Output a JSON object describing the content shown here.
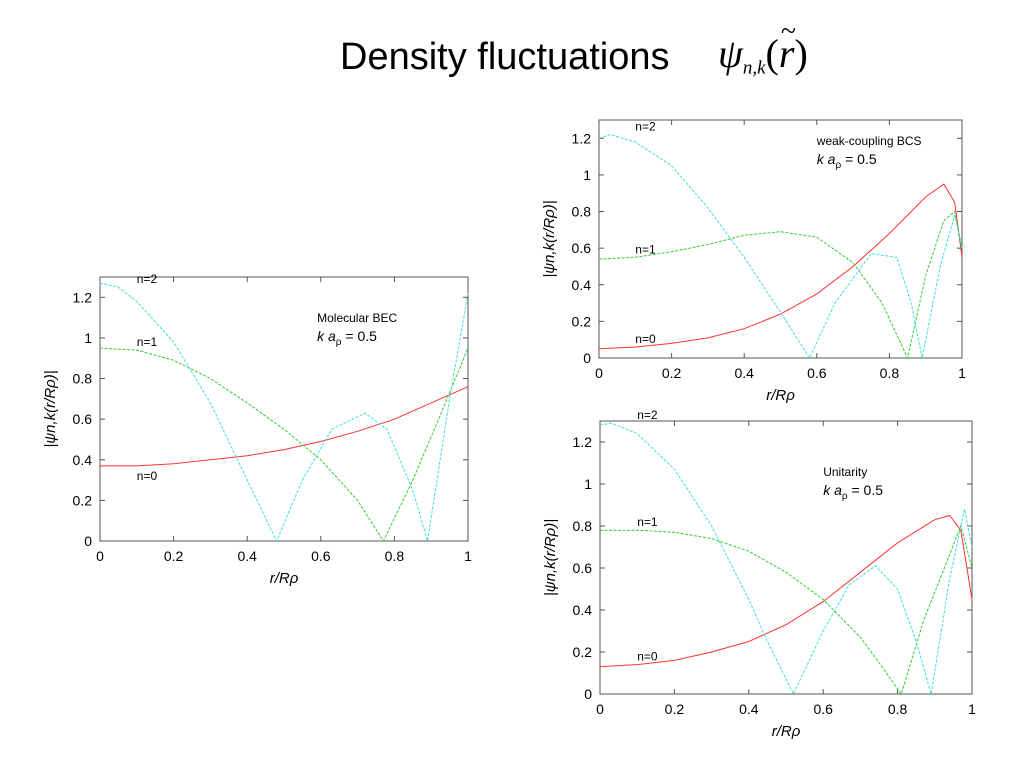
{
  "title": "Density fluctuations",
  "formula": {
    "symbol": "ψ",
    "subscript": "n,k",
    "argument": "r",
    "accent": "~"
  },
  "chart_data": [
    {
      "type": "line",
      "annotation": "Molecular BEC",
      "parameter": {
        "prefix": "k a",
        "sub": "ρ",
        "suffix": " = 0.5"
      },
      "xlabel": "r/Rρ",
      "ylabel": "|ψn,k(r/Rρ)|",
      "xlim": [
        0,
        1
      ],
      "ylim": [
        0,
        1.3
      ],
      "xticks": [
        "0",
        "0.2",
        "0.4",
        "0.6",
        "0.8",
        "1"
      ],
      "yticks": [
        "0",
        "0.2",
        "0.4",
        "0.6",
        "0.8",
        "1",
        "1.2"
      ],
      "grid": false,
      "series": [
        {
          "name": "n=0",
          "color": "#ff3333",
          "x": [
            0,
            0.1,
            0.2,
            0.3,
            0.4,
            0.5,
            0.6,
            0.7,
            0.8,
            0.9,
            1.0
          ],
          "y": [
            0.37,
            0.37,
            0.38,
            0.4,
            0.42,
            0.45,
            0.49,
            0.54,
            0.6,
            0.68,
            0.76
          ]
        },
        {
          "name": "n=1",
          "color": "#33cc33",
          "x": [
            0,
            0.1,
            0.2,
            0.3,
            0.4,
            0.5,
            0.6,
            0.7,
            0.77,
            0.85,
            0.92,
            1.0
          ],
          "y": [
            0.95,
            0.94,
            0.89,
            0.8,
            0.68,
            0.55,
            0.4,
            0.2,
            0.0,
            0.3,
            0.6,
            0.95
          ]
        },
        {
          "name": "n=2",
          "color": "#44dddd",
          "x": [
            0,
            0.05,
            0.1,
            0.2,
            0.3,
            0.4,
            0.48,
            0.55,
            0.63,
            0.72,
            0.78,
            0.85,
            0.89,
            0.95,
            1.0
          ],
          "y": [
            1.27,
            1.25,
            1.18,
            0.98,
            0.68,
            0.3,
            0.0,
            0.3,
            0.55,
            0.63,
            0.55,
            0.25,
            0.0,
            0.7,
            1.22
          ]
        }
      ]
    },
    {
      "type": "line",
      "annotation": "weak-coupling BCS",
      "parameter": {
        "prefix": "k a",
        "sub": "ρ",
        "suffix": " = 0.5"
      },
      "xlabel": "r/Rρ",
      "ylabel": "|ψn,k(r/Rρ)|",
      "xlim": [
        0,
        1
      ],
      "ylim": [
        0,
        1.3
      ],
      "xticks": [
        "0",
        "0.2",
        "0.4",
        "0.6",
        "0.8",
        "1"
      ],
      "yticks": [
        "0",
        "0.2",
        "0.4",
        "0.6",
        "0.8",
        "1",
        "1.2"
      ],
      "grid": false,
      "series": [
        {
          "name": "n=0",
          "color": "#ff3333",
          "x": [
            0,
            0.1,
            0.2,
            0.3,
            0.4,
            0.5,
            0.6,
            0.7,
            0.8,
            0.9,
            0.95,
            0.98,
            1.0
          ],
          "y": [
            0.05,
            0.06,
            0.08,
            0.11,
            0.16,
            0.24,
            0.35,
            0.5,
            0.68,
            0.88,
            0.95,
            0.85,
            0.55
          ]
        },
        {
          "name": "n=1",
          "color": "#33cc33",
          "x": [
            0,
            0.1,
            0.2,
            0.3,
            0.4,
            0.5,
            0.6,
            0.7,
            0.78,
            0.85,
            0.9,
            0.95,
            0.98,
            1.0
          ],
          "y": [
            0.54,
            0.55,
            0.58,
            0.62,
            0.67,
            0.69,
            0.66,
            0.52,
            0.3,
            0.0,
            0.45,
            0.75,
            0.8,
            0.6
          ]
        },
        {
          "name": "n=2",
          "color": "#44dddd",
          "x": [
            0,
            0.03,
            0.1,
            0.2,
            0.3,
            0.4,
            0.5,
            0.58,
            0.65,
            0.75,
            0.82,
            0.86,
            0.89,
            0.94,
            0.98,
            1.0
          ],
          "y": [
            1.2,
            1.22,
            1.18,
            1.05,
            0.82,
            0.55,
            0.25,
            0.0,
            0.3,
            0.57,
            0.55,
            0.3,
            0.0,
            0.5,
            0.78,
            0.6
          ]
        }
      ]
    },
    {
      "type": "line",
      "annotation": "Unitarity",
      "parameter": {
        "prefix": "k a",
        "sub": "ρ",
        "suffix": " = 0.5"
      },
      "xlabel": "r/Rρ",
      "ylabel": "|ψn,k(r/Rρ)|",
      "xlim": [
        0,
        1
      ],
      "ylim": [
        0,
        1.3
      ],
      "xticks": [
        "0",
        "0.2",
        "0.4",
        "0.6",
        "0.8",
        "1"
      ],
      "yticks": [
        "0",
        "0.2",
        "0.4",
        "0.6",
        "0.8",
        "1",
        "1.2"
      ],
      "grid": false,
      "series": [
        {
          "name": "n=0",
          "color": "#ff3333",
          "x": [
            0,
            0.1,
            0.2,
            0.3,
            0.4,
            0.5,
            0.6,
            0.7,
            0.8,
            0.9,
            0.94,
            0.97,
            1.0
          ],
          "y": [
            0.13,
            0.14,
            0.16,
            0.2,
            0.25,
            0.33,
            0.44,
            0.58,
            0.72,
            0.83,
            0.85,
            0.78,
            0.45
          ]
        },
        {
          "name": "n=1",
          "color": "#33cc33",
          "x": [
            0,
            0.1,
            0.2,
            0.3,
            0.4,
            0.5,
            0.6,
            0.7,
            0.75,
            0.81,
            0.87,
            0.93,
            0.97,
            1.0
          ],
          "y": [
            0.78,
            0.78,
            0.77,
            0.74,
            0.68,
            0.58,
            0.45,
            0.27,
            0.15,
            0.0,
            0.35,
            0.62,
            0.8,
            0.6
          ]
        },
        {
          "name": "n=2",
          "color": "#44dddd",
          "x": [
            0,
            0.03,
            0.1,
            0.2,
            0.3,
            0.4,
            0.45,
            0.52,
            0.6,
            0.67,
            0.74,
            0.8,
            0.85,
            0.89,
            0.94,
            0.98,
            1.0
          ],
          "y": [
            1.28,
            1.29,
            1.24,
            1.07,
            0.8,
            0.45,
            0.25,
            0.0,
            0.3,
            0.52,
            0.61,
            0.5,
            0.25,
            0.0,
            0.55,
            0.88,
            0.7
          ]
        }
      ]
    }
  ]
}
